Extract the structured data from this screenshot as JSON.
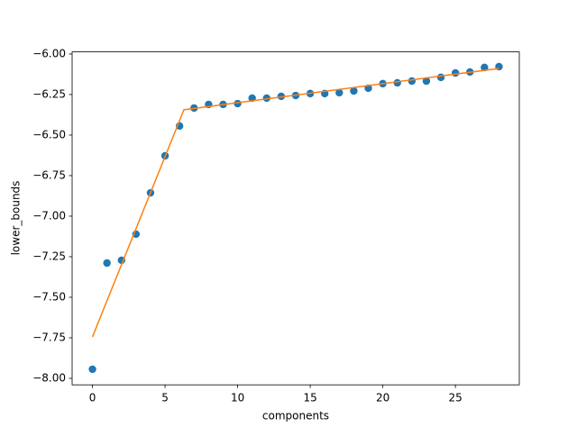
{
  "chart_data": {
    "type": "scatter",
    "xlabel": "components",
    "ylabel": "lower_bounds",
    "xlim": [
      -1.4,
      29.4
    ],
    "ylim": [
      -8.04,
      -5.987
    ],
    "xticks": [
      0,
      5,
      10,
      15,
      20,
      25
    ],
    "yticks": [
      {
        "value": -8,
        "label": "−8.00"
      },
      {
        "value": -7.75,
        "label": "−7.75"
      },
      {
        "value": -7.5,
        "label": "−7.50"
      },
      {
        "value": -7.25,
        "label": "−7.25"
      },
      {
        "value": -7,
        "label": "−7.00"
      },
      {
        "value": -6.75,
        "label": "−6.75"
      },
      {
        "value": -6.5,
        "label": "−6.50"
      },
      {
        "value": -6.25,
        "label": "−6.25"
      },
      {
        "value": -6,
        "label": "−6.00"
      }
    ],
    "series": [
      {
        "mode": "markers",
        "color": "#1f77b4",
        "x": [
          0,
          1,
          2,
          3,
          4,
          5,
          6,
          7,
          8,
          9,
          10,
          11,
          12,
          13,
          14,
          15,
          16,
          17,
          18,
          19,
          20,
          21,
          22,
          23,
          24,
          25,
          26,
          27,
          28
        ],
        "values": [
          -7.944,
          -7.289,
          -7.272,
          -7.111,
          -6.856,
          -6.628,
          -6.444,
          -6.333,
          -6.311,
          -6.311,
          -6.306,
          -6.272,
          -6.272,
          -6.261,
          -6.256,
          -6.244,
          -6.244,
          -6.239,
          -6.228,
          -6.211,
          -6.183,
          -6.178,
          -6.167,
          -6.167,
          -6.144,
          -6.117,
          -6.111,
          -6.083,
          -6.078
        ]
      },
      {
        "mode": "lines",
        "color": "#ff7f0e",
        "x": [
          0,
          6.3,
          28
        ],
        "values": [
          -7.744,
          -6.344,
          -6.089
        ]
      }
    ]
  }
}
